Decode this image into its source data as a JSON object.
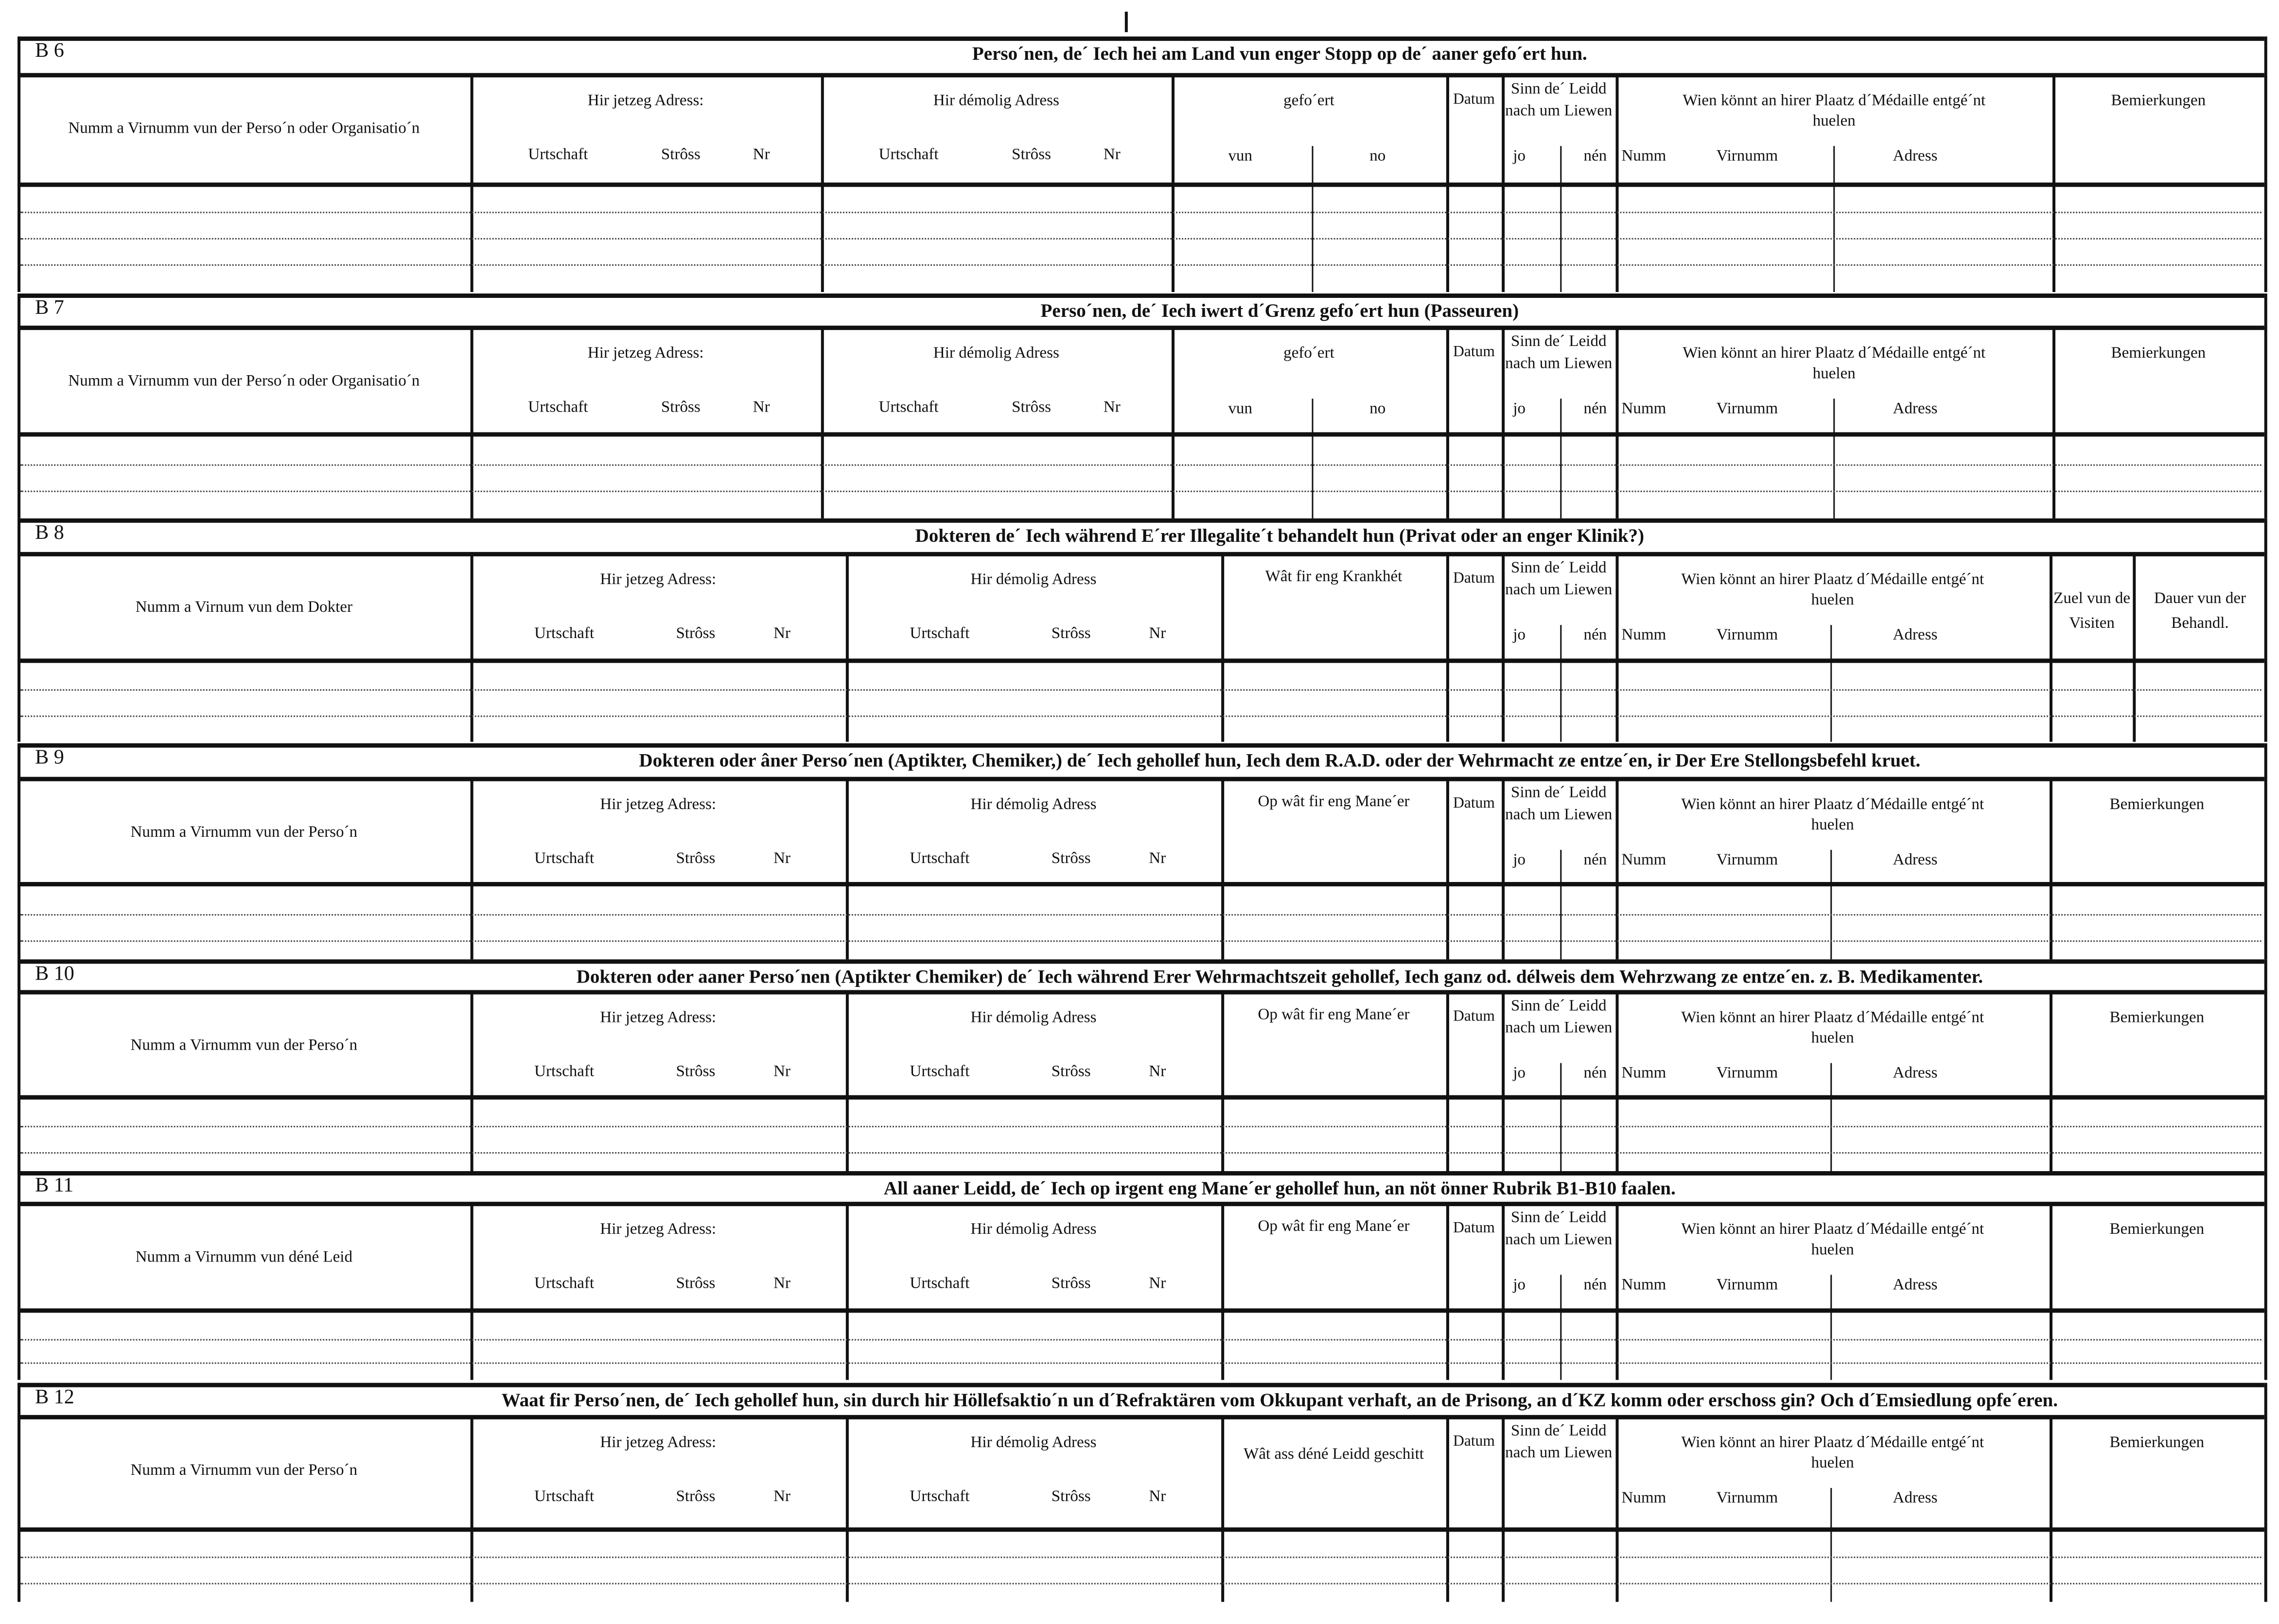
{
  "sections": [
    {
      "id": "B 6",
      "title": "Perso´nen, de´ Iech hei am Land vun enger Stopp  op de´ aaner gefo´ert hun.",
      "name_header": "Numm a Virnumm vun der Perso´n oder Organisatio´n",
      "current_address": {
        "label": "Hir jetzeg Adress:",
        "sub": [
          "Urtschaft",
          "Strôss",
          "Nr"
        ]
      },
      "former_address": {
        "label": "Hir démolig Adress",
        "sub": [
          "Urtschaft",
          "Strôss",
          "Nr"
        ]
      },
      "col4": {
        "label": "gefo´ert",
        "sub": [
          "vun",
          "no"
        ]
      },
      "datum": "Datum",
      "survived": {
        "label": "Sinn  de´ Leidd  nach um Liewen",
        "sub": [
          "jo",
          "nén"
        ]
      },
      "medal": {
        "label": "Wien  könnt  an  hirer  Plaatz  d´Médaille entgé´nt huelen",
        "sub": [
          "Numm",
          "Virnumm",
          "Adress"
        ]
      },
      "remarks": [
        "Bemierkungen"
      ]
    },
    {
      "id": "B 7",
      "title": "Perso´nen, de´ Iech iwert d´Grenz gefo´ert hun (Passeuren)",
      "name_header": "Numm a Virnumm vun der Perso´n oder Organisatio´n",
      "current_address": {
        "label": "Hir jetzeg Adress:",
        "sub": [
          "Urtschaft",
          "Strôss",
          "Nr"
        ]
      },
      "former_address": {
        "label": "Hir démolig Adress",
        "sub": [
          "Urtschaft",
          "Strôss",
          "Nr"
        ]
      },
      "col4": {
        "label": "gefo´ert",
        "sub": [
          "vun",
          "no"
        ]
      },
      "datum": "Datum",
      "survived": {
        "label": "Sinn  de´ Leidd  nach um Liewen",
        "sub": [
          "jo",
          "nén"
        ]
      },
      "medal": {
        "label": "Wien  könnt  an  hirer  Plaatz  d´Médaille entgé´nt huelen",
        "sub": [
          "Numm",
          "Virnumm",
          "Adress"
        ]
      },
      "remarks": [
        "Bemierkungen"
      ]
    },
    {
      "id": "B 8",
      "title": "Dokteren de´ Iech während E´rer Illegalite´t behandelt hun (Privat oder an enger Klinik?)",
      "name_header": "Numm a Virnum vun dem Dokter",
      "current_address": {
        "label": "Hir jetzeg Adress:",
        "sub": [
          "Urtschaft",
          "Strôss",
          "Nr"
        ]
      },
      "former_address": {
        "label": "Hir démolig Adress",
        "sub": [
          "Urtschaft",
          "Strôss",
          "Nr"
        ]
      },
      "col4": {
        "label": "Wât fir eng Krankhét",
        "sub": []
      },
      "datum": "Datum",
      "survived": {
        "label": "Sinn  de´ Leidd  nach um Liewen",
        "sub": [
          "jo",
          "nén"
        ]
      },
      "medal": {
        "label": "Wien  könnt  an  hirer  Plaatz  d´Médaille entgé´nt huelen",
        "sub": [
          "Numm",
          "Virnumm",
          "Adress"
        ]
      },
      "remarks": [
        "Zuel vun de Visiten",
        "Dauer vun der Behandl."
      ]
    },
    {
      "id": "B 9",
      "title": "Dokteren oder âner Perso´nen (Aptikter, Chemiker,) de´ Iech gehollef hun, Iech dem R.A.D. oder der Wehrmacht ze entze´en, ir Der Ere Stellongsbefehl kruet.",
      "name_header": "Numm a Virnumm vun der Perso´n",
      "current_address": {
        "label": "Hir jetzeg Adress:",
        "sub": [
          "Urtschaft",
          "Strôss",
          "Nr"
        ]
      },
      "former_address": {
        "label": "Hir démolig Adress",
        "sub": [
          "Urtschaft",
          "Strôss",
          "Nr"
        ]
      },
      "col4": {
        "label": "Op wât fir eng Mane´er",
        "sub": []
      },
      "datum": "Datum",
      "survived": {
        "label": "Sinn  de´ Leidd  nach um Liewen",
        "sub": [
          "jo",
          "nén"
        ]
      },
      "medal": {
        "label": "Wien  könnt  an  hirer  Plaatz  d´Médaille entgé´nt huelen",
        "sub": [
          "Numm",
          "Virnumm",
          "Adress"
        ]
      },
      "remarks": [
        "Bemierkungen"
      ]
    },
    {
      "id": "B 10",
      "title": "Dokteren oder aaner Perso´nen (Aptikter Chemiker) de´ Iech während Erer Wehrmachtszeit gehollef, Iech ganz od. délweis dem Wehrzwang ze entze´en. z. B. Medikamenter.",
      "name_header": "Numm a Virnumm vun der Perso´n",
      "current_address": {
        "label": "Hir jetzeg Adress:",
        "sub": [
          "Urtschaft",
          "Strôss",
          "Nr"
        ]
      },
      "former_address": {
        "label": "Hir démolig Adress",
        "sub": [
          "Urtschaft",
          "Strôss",
          "Nr"
        ]
      },
      "col4": {
        "label": "Op wât fir eng Mane´er",
        "sub": []
      },
      "datum": "Datum",
      "survived": {
        "label": "Sinn  de´ Leidd  nach um Liewen",
        "sub": [
          "jo",
          "nén"
        ]
      },
      "medal": {
        "label": "Wien  könnt  an  hirer  Plaatz  d´Médaille entgé´nt huelen",
        "sub": [
          "Numm",
          "Virnumm",
          "Adress"
        ]
      },
      "remarks": [
        "Bemierkungen"
      ]
    },
    {
      "id": "B 11",
      "title": "All aaner Leidd, de´ Iech op irgent eng Mane´er gehollef hun, an nöt önner Rubrik B1-B10 faalen.",
      "name_header": "Numm a Virnumm vun déné Leid",
      "current_address": {
        "label": "Hir jetzeg Adress:",
        "sub": [
          "Urtschaft",
          "Strôss",
          "Nr"
        ]
      },
      "former_address": {
        "label": "Hir démolig Adress",
        "sub": [
          "Urtschaft",
          "Strôss",
          "Nr"
        ]
      },
      "col4": {
        "label": "Op wât fir eng Mane´er",
        "sub": []
      },
      "datum": "Datum",
      "survived": {
        "label": "Sinn  de´ Leidd  nach um Liewen",
        "sub": [
          "jo",
          "nén"
        ]
      },
      "medal": {
        "label": "Wien  könnt  an  hirer  Plaatz  d´Médaille entgé´nt huelen",
        "sub": [
          "Numm",
          "Virnumm",
          "Adress"
        ]
      },
      "remarks": [
        "Bemierkungen"
      ]
    },
    {
      "id": "B 12",
      "title": "Waat fir Perso´nen, de´ Iech gehollef hun, sin durch hir Höllefsaktio´n un d´Refraktären vom Okkupant verhaft, an de Prisong, an d´KZ komm oder  erschoss gin? Och d´Emsiedlung opfe´eren.",
      "name_header": "Numm a Virnumm vun der Perso´n",
      "current_address": {
        "label": "Hir jetzeg Adress:",
        "sub": [
          "Urtschaft",
          "Strôss",
          "Nr"
        ]
      },
      "former_address": {
        "label": "Hir démolig Adress",
        "sub": [
          "Urtschaft",
          "Strôss",
          "Nr"
        ]
      },
      "col4": {
        "label": "Wât ass déné Leidd geschitt",
        "sub": []
      },
      "datum": "Datum",
      "survived": {
        "label": "Sinn  de´ Leidd  nach um Liewen",
        "sub": []
      },
      "medal": {
        "label": "Wien  könnt  an  hirer  Plaatz  d´Médaille entgé´nt huelen",
        "sub": [
          "Numm",
          "Virnumm",
          "Adress"
        ]
      },
      "remarks": [
        "Bemierkungen"
      ]
    }
  ]
}
